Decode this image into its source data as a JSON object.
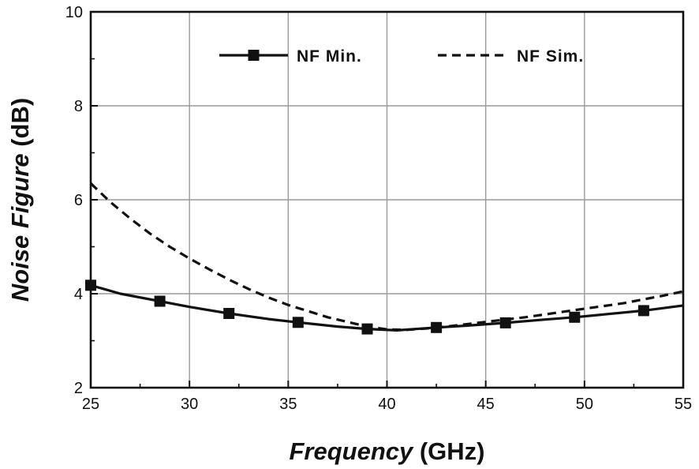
{
  "chart_data": {
    "type": "line",
    "xlabel_italic": "Frequency",
    "xlabel_unit": " (GHz)",
    "ylabel_italic": "Noise Figure",
    "ylabel_unit": " (dB)",
    "xlim": [
      25,
      55
    ],
    "ylim": [
      2,
      10
    ],
    "xticks": [
      25,
      30,
      35,
      40,
      45,
      50,
      55
    ],
    "yticks": [
      2,
      4,
      6,
      8,
      10
    ],
    "grid": true,
    "legend_position": "top",
    "series": [
      {
        "name": "NF Min.",
        "style": "solid",
        "marker": "square",
        "color": "#111111",
        "x": [
          25,
          28.5,
          32,
          35.5,
          39,
          42.5,
          46,
          49.5,
          53
        ],
        "y": [
          4.18,
          3.84,
          3.58,
          3.39,
          3.25,
          3.28,
          3.38,
          3.5,
          3.64
        ],
        "line_x": [
          25,
          26.5,
          28.5,
          30,
          32,
          34,
          35.5,
          37.5,
          39,
          40.5,
          42.5,
          44,
          46,
          48,
          49.5,
          51,
          53,
          55
        ],
        "line_y": [
          4.18,
          4.0,
          3.84,
          3.72,
          3.58,
          3.46,
          3.39,
          3.3,
          3.25,
          3.22,
          3.28,
          3.32,
          3.38,
          3.45,
          3.5,
          3.56,
          3.64,
          3.75
        ]
      },
      {
        "name": "NF Sim.",
        "style": "dashed",
        "color": "#111111",
        "x": [
          25,
          26,
          27,
          28,
          29,
          30,
          31,
          32,
          33,
          34,
          35,
          36,
          37,
          38,
          39,
          40,
          41,
          42,
          43,
          44,
          45,
          46,
          47,
          48,
          49,
          50,
          51,
          52,
          53,
          54,
          55
        ],
        "y": [
          6.35,
          5.95,
          5.6,
          5.28,
          5.0,
          4.75,
          4.52,
          4.3,
          4.1,
          3.92,
          3.76,
          3.63,
          3.5,
          3.4,
          3.3,
          3.24,
          3.23,
          3.26,
          3.3,
          3.35,
          3.4,
          3.45,
          3.5,
          3.56,
          3.62,
          3.68,
          3.74,
          3.8,
          3.88,
          3.96,
          4.05
        ]
      }
    ]
  }
}
